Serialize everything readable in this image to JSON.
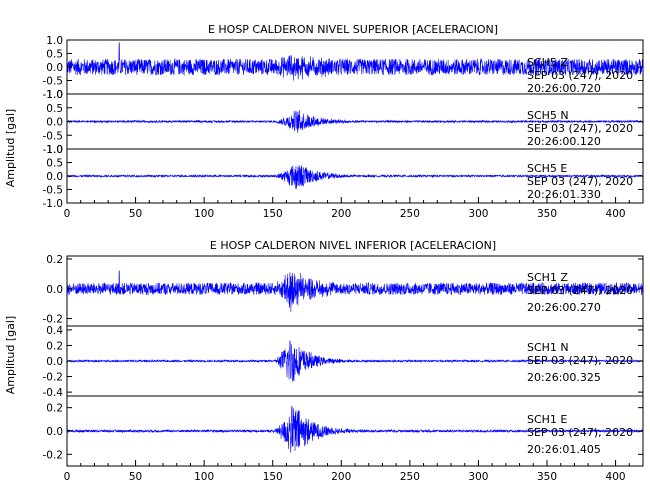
{
  "chart_data": [
    {
      "type": "line",
      "title": "E HOSP CALDERON NIVEL SUPERIOR [ACELERACION]",
      "ylabel": "Amplitud [gal]",
      "xlabel": "",
      "xlim": [
        0,
        420
      ],
      "xticks": [
        0,
        50,
        100,
        150,
        200,
        250,
        300,
        350,
        400
      ],
      "series_color": "#0000ff",
      "traces": [
        {
          "label_lines": [
            "SCH5   Z",
            "SEP 03 (247), 2020",
            "20:26:00.720"
          ],
          "ylim": [
            -1.0,
            1.0
          ],
          "yticks": [
            -1.0,
            -0.5,
            0.0,
            0.5,
            1.0
          ],
          "ytick_labels": [
            "-1.0",
            "-0.5",
            "0.0",
            "0.5",
            "1.0"
          ],
          "noise_amplitude": 0.3,
          "event": {
            "start": 150,
            "peak": 165,
            "end": 230,
            "peak_amplitude": 0.35
          },
          "spike": {
            "x": 38,
            "value": 0.9
          }
        },
        {
          "label_lines": [
            "SCH5   N",
            "SEP 03 (247), 2020",
            "20:26:00.120"
          ],
          "ylim": [
            -1.0,
            1.0
          ],
          "yticks": [
            -1.0,
            -0.5,
            0.0,
            0.5,
            1.0
          ],
          "ytick_labels": [
            "-1.0",
            "-0.5",
            "0.0",
            "0.5",
            "1.0"
          ],
          "noise_amplitude": 0.035,
          "event": {
            "start": 150,
            "peak": 168,
            "end": 225,
            "peak_amplitude": 0.45
          }
        },
        {
          "label_lines": [
            "SCH5   E",
            "SEP 03 (247), 2020",
            "20:26:01.330"
          ],
          "ylim": [
            -1.0,
            1.0
          ],
          "yticks": [
            -1.0,
            -0.5,
            0.0,
            0.5,
            1.0
          ],
          "ytick_labels": [
            "-1.0",
            "-0.5",
            "0.0",
            "0.5",
            "1.0"
          ],
          "noise_amplitude": 0.035,
          "event": {
            "start": 150,
            "peak": 167,
            "end": 225,
            "peak_amplitude": 0.55
          }
        }
      ]
    },
    {
      "type": "line",
      "title": "E HOSP CALDERON NIVEL INFERIOR [ACELERACION]",
      "ylabel": "Amplitud [gal]",
      "xlabel": "",
      "xlim": [
        0,
        420
      ],
      "xticks": [
        0,
        50,
        100,
        150,
        200,
        250,
        300,
        350,
        400
      ],
      "series_color": "#0000ff",
      "traces": [
        {
          "label_lines": [
            "SCH1   Z",
            "SEP 03 (247), 2020",
            "20:26:00.270"
          ],
          "ylim": [
            -0.25,
            0.22
          ],
          "yticks": [
            -0.2,
            0.0,
            0.2
          ],
          "ytick_labels": [
            "-0.2",
            "0.0",
            "0.2"
          ],
          "noise_amplitude": 0.04,
          "event": {
            "start": 150,
            "peak": 162,
            "end": 220,
            "peak_amplitude": 0.14
          },
          "spike": {
            "x": 38,
            "value": 0.12
          }
        },
        {
          "label_lines": [
            "SCH1   N",
            "SEP 03 (247), 2020",
            "20:26:00.325"
          ],
          "ylim": [
            -0.45,
            0.45
          ],
          "yticks": [
            -0.4,
            -0.2,
            0.0,
            0.2,
            0.4
          ],
          "ytick_labels": [
            "-0.4",
            "-0.2",
            "0.0",
            "0.2",
            "0.4"
          ],
          "noise_amplitude": 0.012,
          "event": {
            "start": 150,
            "peak": 163,
            "end": 215,
            "peak_amplitude": 0.32
          }
        },
        {
          "label_lines": [
            "SCH1   E",
            "SEP 03 (247), 2020",
            "20:26:01.405"
          ],
          "ylim": [
            -0.3,
            0.3
          ],
          "yticks": [
            -0.2,
            0.0,
            0.2
          ],
          "ytick_labels": [
            "-0.2",
            "0.0",
            "0.2"
          ],
          "noise_amplitude": 0.01,
          "event": {
            "start": 150,
            "peak": 165,
            "end": 220,
            "peak_amplitude": 0.24
          }
        }
      ]
    }
  ]
}
